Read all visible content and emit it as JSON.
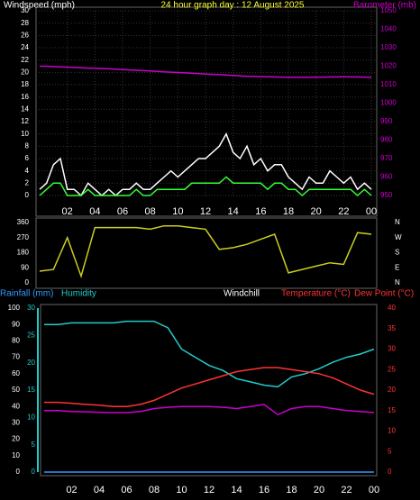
{
  "chart_data": [
    {
      "type": "line",
      "title": "24 hour graph day : 12 August 2025",
      "ylabel": "Windspeed (mph)",
      "grid": true,
      "x": [
        0,
        0.5,
        1,
        1.5,
        2,
        2.5,
        3,
        3.5,
        4,
        4.5,
        5,
        5.5,
        6,
        6.5,
        7,
        7.5,
        8,
        8.5,
        9,
        9.5,
        10,
        10.5,
        11,
        11.5,
        12,
        12.5,
        13,
        13.5,
        14,
        14.5,
        15,
        15.5,
        16,
        16.5,
        17,
        17.5,
        18,
        18.5,
        19,
        19.5,
        20,
        20.5,
        21,
        21.5,
        22,
        22.5,
        23,
        23.5,
        24
      ],
      "xlim": [
        0,
        24
      ],
      "xticks": [
        {
          "value": 2,
          "label": "02"
        },
        {
          "value": 4,
          "label": "04"
        },
        {
          "value": 6,
          "label": "06"
        },
        {
          "value": 8,
          "label": "08"
        },
        10,
        12,
        14,
        16,
        18,
        20,
        22,
        {
          "value": 24,
          "label": "00"
        }
      ],
      "ylim": [
        0,
        30
      ],
      "yticks": [
        0,
        2,
        4,
        6,
        8,
        10,
        12,
        14,
        16,
        18,
        20,
        22,
        24,
        26,
        28,
        30
      ],
      "y2lim": [
        950,
        1050
      ],
      "y2ticks": [
        950,
        960,
        970,
        980,
        990,
        1000,
        1010,
        1020,
        1030,
        1040,
        1050
      ],
      "series": [
        {
          "color": "#ffffff",
          "values": [
            1,
            2,
            5,
            6,
            1,
            1,
            0,
            2,
            1,
            0,
            1,
            0,
            1,
            1,
            2,
            1,
            1,
            2,
            3,
            4,
            3,
            4,
            5,
            6,
            6,
            7,
            8,
            10,
            7,
            6,
            8,
            5,
            6,
            4,
            5,
            5,
            3,
            2,
            1,
            3,
            2,
            2,
            4,
            3,
            2,
            3,
            1,
            2,
            1
          ]
        },
        {
          "color": "#33ff33",
          "values": [
            0,
            1,
            2,
            2,
            0,
            0,
            0,
            1,
            0,
            0,
            0,
            0,
            0,
            0,
            1,
            0,
            0,
            1,
            1,
            1,
            1,
            1,
            2,
            2,
            2,
            2,
            2,
            3,
            2,
            2,
            2,
            2,
            2,
            1,
            2,
            2,
            1,
            1,
            0,
            1,
            1,
            1,
            1,
            1,
            1,
            1,
            0,
            1,
            0
          ]
        },
        {
          "name": "Barometer (mb)",
          "axis": "y2",
          "color": "#cc00cc",
          "values": [
            1020,
            1020,
            1019.8,
            1019.6,
            1019.5,
            1019.3,
            1019.2,
            1019,
            1018.9,
            1018.8,
            1018.6,
            1018.4,
            1018.2,
            1018,
            1017.8,
            1017.6,
            1017.4,
            1017.2,
            1017,
            1016.8,
            1016.6,
            1016.4,
            1016.2,
            1016,
            1015.8,
            1015.6,
            1015.4,
            1015.2,
            1015,
            1014.8,
            1014.6,
            1014.5,
            1014.4,
            1014.3,
            1014.2,
            1014.1,
            1014,
            1014,
            1014,
            1014,
            1014.1,
            1014.1,
            1014.2,
            1014.2,
            1014.3,
            1014.2,
            1014.2,
            1014.1,
            1014
          ]
        }
      ]
    },
    {
      "type": "line",
      "x": [
        0,
        1,
        2,
        3,
        4,
        5,
        6,
        7,
        8,
        9,
        10,
        11,
        12,
        13,
        14,
        15,
        16,
        17,
        18,
        19,
        20,
        21,
        22,
        23,
        24
      ],
      "xlim": [
        0,
        24
      ],
      "ylim": [
        0,
        360
      ],
      "yticks": [
        0,
        90,
        180,
        270,
        360
      ],
      "y2lim": [
        0,
        360
      ],
      "y2ticks": [
        {
          "value": 360,
          "label": "N"
        },
        {
          "value": 270,
          "label": "W"
        },
        {
          "value": 180,
          "label": "S"
        },
        {
          "value": 90,
          "label": "E"
        },
        {
          "value": 0,
          "label": "N"
        }
      ],
      "series": [
        {
          "color": "#cccc22",
          "values": [
            70,
            80,
            270,
            40,
            330,
            330,
            330,
            330,
            320,
            340,
            340,
            330,
            320,
            200,
            210,
            230,
            260,
            290,
            60,
            80,
            100,
            120,
            110,
            300,
            290
          ]
        }
      ]
    },
    {
      "type": "line",
      "ylabel": "Humidity",
      "note": "Windchill",
      "x": [
        0,
        1,
        2,
        3,
        4,
        5,
        6,
        7,
        8,
        9,
        10,
        11,
        12,
        13,
        14,
        15,
        16,
        17,
        18,
        19,
        20,
        21,
        22,
        23,
        24
      ],
      "xlim": [
        0,
        24
      ],
      "xticks": [
        {
          "value": 2,
          "label": "02"
        },
        {
          "value": 4,
          "label": "04"
        },
        {
          "value": 6,
          "label": "06"
        },
        {
          "value": 8,
          "label": "08"
        },
        10,
        12,
        14,
        16,
        18,
        20,
        22,
        {
          "value": 24,
          "label": "00"
        }
      ],
      "ylim": [
        0,
        100
      ],
      "yticks": [
        0,
        10,
        20,
        30,
        40,
        50,
        60,
        70,
        80,
        90,
        100
      ],
      "y2lim": [
        0,
        40
      ],
      "y2ticks": [
        0,
        5,
        10,
        15,
        20,
        25,
        30,
        35,
        40
      ],
      "y3lim": [
        0,
        30
      ],
      "y3ticks": [
        0,
        5,
        10,
        15,
        20,
        25,
        30
      ],
      "series": [
        {
          "name": "Rainfall (mm)",
          "axis": "y3",
          "color": "#3399ff",
          "values": [
            0,
            0,
            0,
            0,
            0,
            0,
            0,
            0,
            0,
            0,
            0,
            0,
            0,
            0,
            0,
            0,
            0,
            0,
            0,
            0,
            0,
            0,
            0,
            0,
            0
          ]
        },
        {
          "name": "Humidity",
          "color": "#22cccc",
          "values": [
            90,
            90,
            91,
            91,
            91,
            91,
            92,
            92,
            92,
            88,
            75,
            70,
            65,
            62,
            57,
            55,
            53,
            52,
            58,
            60,
            63,
            67,
            70,
            72,
            75
          ]
        },
        {
          "name": "Temperature (°C)",
          "axis": "y2",
          "color": "#ff3333",
          "values": [
            17,
            17,
            16.8,
            16.5,
            16.3,
            16,
            16,
            16.5,
            17.5,
            19,
            20.5,
            21.5,
            22.5,
            23.5,
            24.5,
            25,
            25.5,
            25.5,
            25,
            24.5,
            24,
            23,
            21.5,
            20,
            19
          ]
        },
        {
          "name": "Dew Point (°C)",
          "axis": "y2",
          "color": "#cc00cc",
          "values": [
            15,
            15,
            14.8,
            14.7,
            14.6,
            14.5,
            14.5,
            14.8,
            15.5,
            15.8,
            16,
            16,
            16,
            15.8,
            15.5,
            16,
            16.5,
            14,
            15.5,
            16,
            16,
            15.5,
            15,
            14.8,
            14.5
          ]
        }
      ]
    }
  ]
}
